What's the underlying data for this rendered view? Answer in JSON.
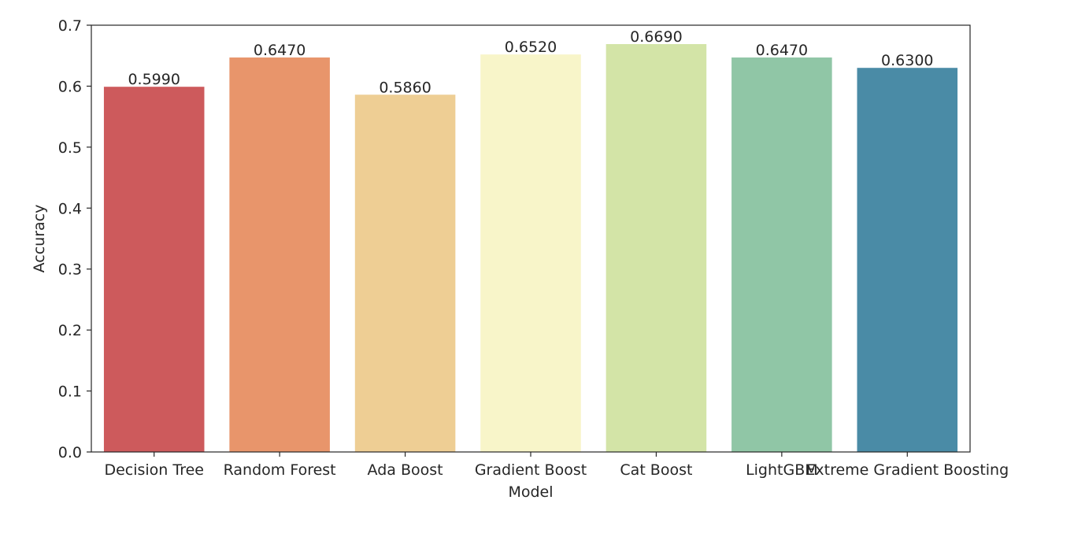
{
  "chart_data": {
    "type": "bar",
    "title": "",
    "xlabel": "Model",
    "ylabel": "Accuracy",
    "ylim": [
      0,
      0.7
    ],
    "yticks": [
      "0.0",
      "0.1",
      "0.2",
      "0.3",
      "0.4",
      "0.5",
      "0.6",
      "0.7"
    ],
    "categories": [
      "Decision Tree",
      "Random Forest",
      "Ada Boost",
      "Gradient Boost",
      "Cat Boost",
      "LightGBM",
      "Extreme Gradient Boosting"
    ],
    "values": [
      0.599,
      0.647,
      0.586,
      0.652,
      0.669,
      0.647,
      0.63
    ],
    "value_labels": [
      "0.5990",
      "0.6470",
      "0.5860",
      "0.6520",
      "0.6690",
      "0.6470",
      "0.6300"
    ],
    "colors": [
      "#cd5a5c",
      "#e8956b",
      "#eece94",
      "#f8f5c9",
      "#d3e4a7",
      "#90c6a6",
      "#4a8ba6"
    ],
    "grid": false,
    "legend": "none"
  }
}
